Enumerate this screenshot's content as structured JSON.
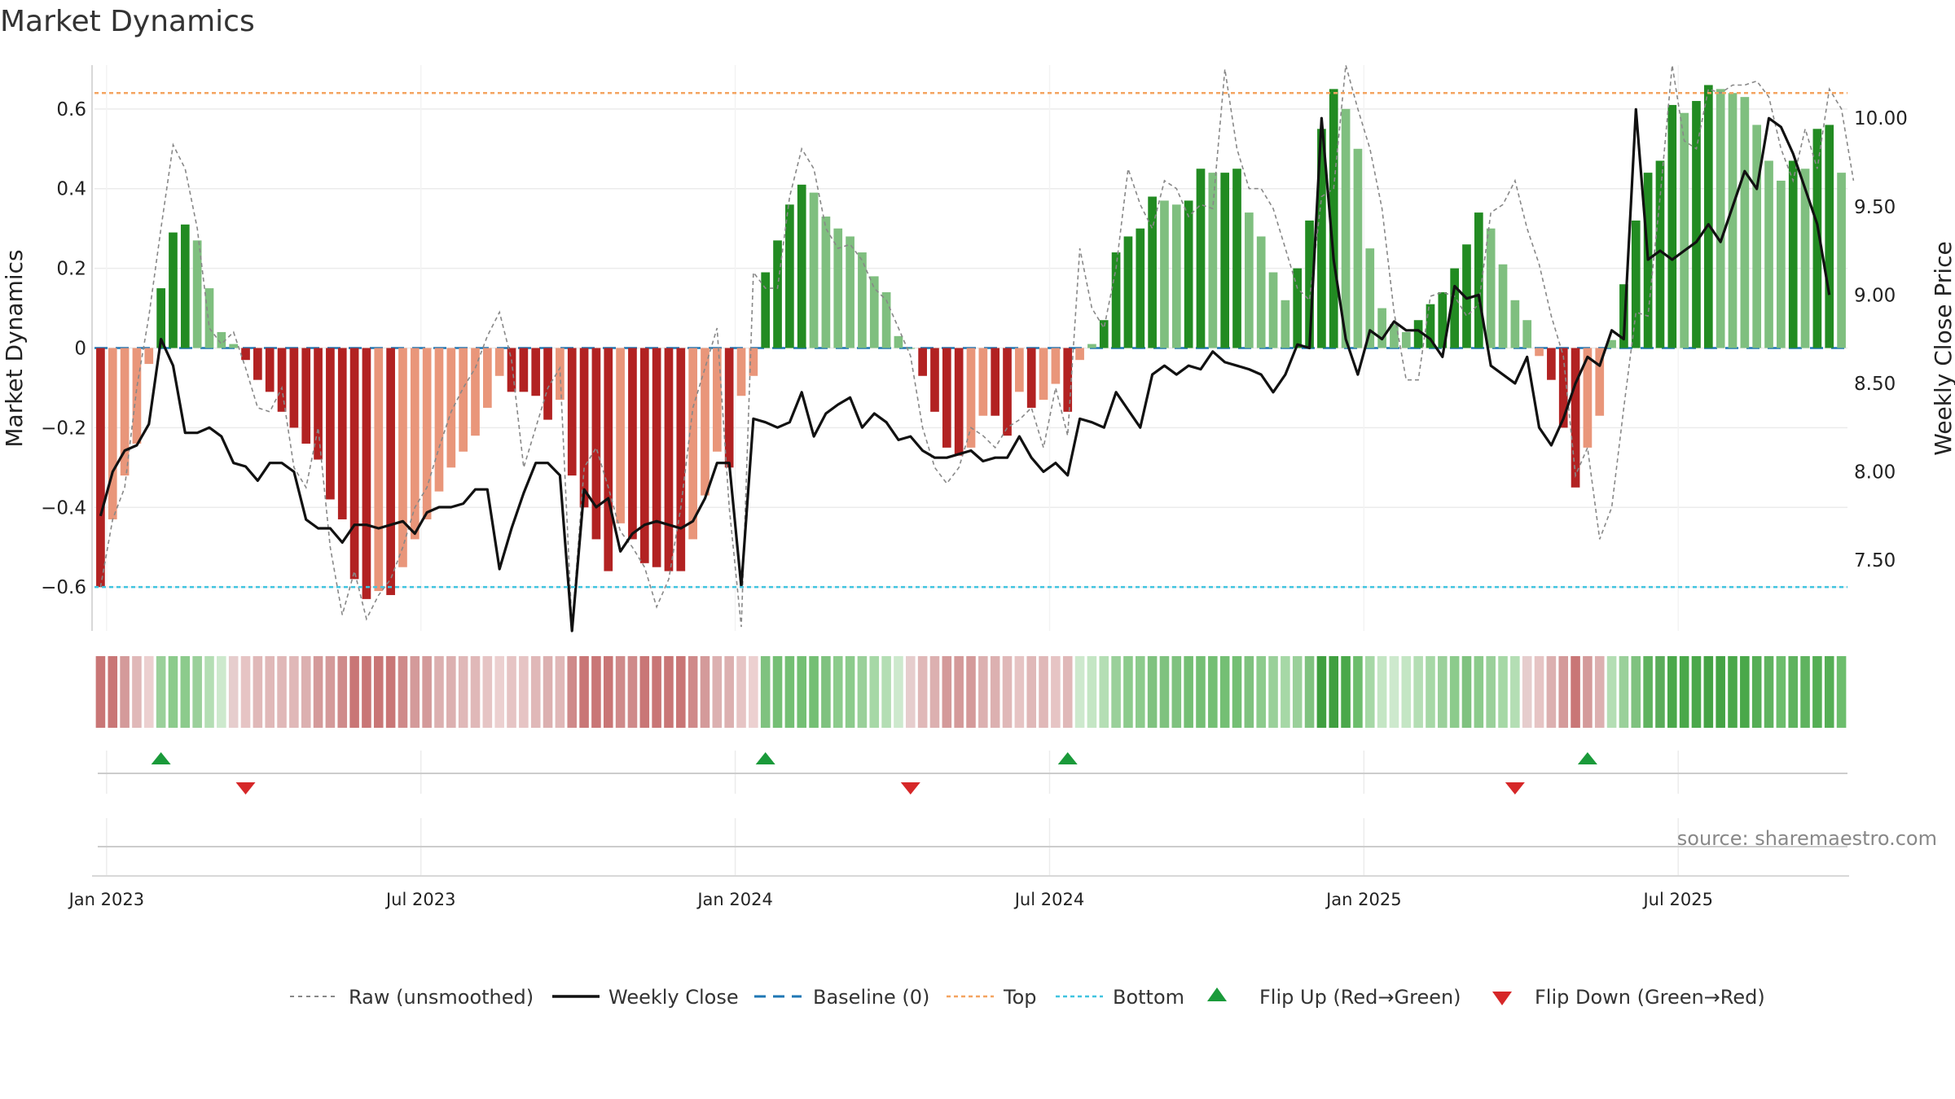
{
  "chart_data": {
    "type": "bar",
    "title": "Market Dynamics",
    "ylabel_left": "Market Dynamics",
    "ylabel_right": "Weekly Close Price",
    "source": "source: sharemaestro.com",
    "ylim_left": [
      -0.71,
      0.71
    ],
    "ylim_right": [
      7.1,
      10.3
    ],
    "yticks_left": [
      "0.6",
      "0.4",
      "0.2",
      "0",
      "−0.2",
      "−0.4",
      "−0.6"
    ],
    "ytick_values_left": [
      0.6,
      0.4,
      0.2,
      0,
      -0.2,
      -0.4,
      -0.6
    ],
    "yticks_right": [
      "10.00",
      "9.50",
      "9.00",
      "8.50",
      "8.00",
      "7.50"
    ],
    "ytick_values_right": [
      10.0,
      9.5,
      9.0,
      8.5,
      8.0,
      7.5
    ],
    "xticks": [
      "Jan 2023",
      "Jul 2023",
      "Jan 2024",
      "Jul 2024",
      "Jan 2025",
      "Jul 2025"
    ],
    "xtick_weeks": [
      0.5,
      26.5,
      52.5,
      78.5,
      104.5,
      130.5
    ],
    "top_line": 0.64,
    "bottom_line": -0.6,
    "baseline": 0,
    "grid": true,
    "legend_position": "bottom-center",
    "colors": {
      "strong_green": "#228b22",
      "light_green": "#7fbf7f",
      "strong_red": "#b22222",
      "light_red": "#e9967a",
      "close": "#111111",
      "raw": "#888888",
      "baseline": "#1f77b4",
      "top": "#f4a460",
      "bottom": "#40c4e0",
      "flip_up": "#1a9a3a",
      "flip_down": "#d62728"
    },
    "bars": [
      -0.6,
      -0.43,
      -0.32,
      -0.24,
      -0.04,
      0.15,
      0.29,
      0.31,
      0.27,
      0.15,
      0.04,
      0.01,
      -0.03,
      -0.08,
      -0.11,
      -0.16,
      -0.2,
      -0.24,
      -0.28,
      -0.38,
      -0.43,
      -0.58,
      -0.63,
      -0.61,
      -0.62,
      -0.55,
      -0.48,
      -0.43,
      -0.36,
      -0.3,
      -0.26,
      -0.22,
      -0.15,
      -0.07,
      -0.11,
      -0.11,
      -0.12,
      -0.18,
      -0.13,
      -0.32,
      -0.4,
      -0.48,
      -0.56,
      -0.44,
      -0.48,
      -0.54,
      -0.55,
      -0.56,
      -0.56,
      -0.48,
      -0.37,
      -0.26,
      -0.3,
      -0.12,
      -0.07,
      0.19,
      0.27,
      0.36,
      0.41,
      0.39,
      0.33,
      0.3,
      0.28,
      0.24,
      0.18,
      0.14,
      0.03,
      0.0,
      -0.07,
      -0.16,
      -0.25,
      -0.27,
      -0.25,
      -0.17,
      -0.17,
      -0.22,
      -0.11,
      -0.15,
      -0.13,
      -0.09,
      -0.16,
      -0.03,
      0.01,
      0.07,
      0.24,
      0.28,
      0.3,
      0.38,
      0.37,
      0.36,
      0.37,
      0.45,
      0.44,
      0.44,
      0.45,
      0.34,
      0.28,
      0.19,
      0.12,
      0.2,
      0.32,
      0.55,
      0.65,
      0.6,
      0.5,
      0.25,
      0.1,
      0.06,
      0.04,
      0.07,
      0.11,
      0.14,
      0.2,
      0.26,
      0.34,
      0.3,
      0.21,
      0.12,
      0.07,
      -0.02,
      -0.08,
      -0.2,
      -0.35,
      -0.25,
      -0.17,
      0.02,
      0.16,
      0.32,
      0.44,
      0.47,
      0.61,
      0.59,
      0.62,
      0.66,
      0.65,
      0.64,
      0.63,
      0.56,
      0.47,
      0.42,
      0.47,
      0.45,
      0.55,
      0.56,
      0.44
    ],
    "raw": [
      -0.6,
      -0.43,
      -0.35,
      -0.1,
      0.08,
      0.3,
      0.51,
      0.45,
      0.3,
      0.05,
      0.01,
      0.04,
      -0.05,
      -0.15,
      -0.16,
      -0.1,
      -0.3,
      -0.35,
      -0.2,
      -0.5,
      -0.67,
      -0.56,
      -0.68,
      -0.62,
      -0.58,
      -0.5,
      -0.4,
      -0.35,
      -0.25,
      -0.16,
      -0.1,
      -0.05,
      0.03,
      0.09,
      -0.03,
      -0.3,
      -0.2,
      -0.1,
      -0.05,
      -0.7,
      -0.3,
      -0.25,
      -0.35,
      -0.46,
      -0.5,
      -0.55,
      -0.65,
      -0.58,
      -0.4,
      -0.15,
      -0.05,
      0.05,
      -0.4,
      -0.7,
      0.19,
      0.15,
      0.15,
      0.38,
      0.5,
      0.45,
      0.3,
      0.25,
      0.26,
      0.22,
      0.15,
      0.12,
      0.05,
      -0.02,
      -0.2,
      -0.3,
      -0.34,
      -0.3,
      -0.2,
      -0.22,
      -0.25,
      -0.2,
      -0.18,
      -0.15,
      -0.25,
      -0.1,
      -0.22,
      0.25,
      0.1,
      0.05,
      0.2,
      0.45,
      0.36,
      0.3,
      0.42,
      0.4,
      0.33,
      0.36,
      0.35,
      0.7,
      0.5,
      0.4,
      0.4,
      0.35,
      0.25,
      0.15,
      0.12,
      0.38,
      0.4,
      0.75,
      0.6,
      0.5,
      0.35,
      0.09,
      -0.08,
      -0.08,
      0.13,
      0.14,
      0.13,
      0.08,
      0.11,
      0.34,
      0.36,
      0.42,
      0.3,
      0.21,
      0.08,
      -0.02,
      -0.32,
      -0.25,
      -0.48,
      -0.4,
      -0.15,
      0.09,
      0.08,
      0.38,
      0.74,
      0.52,
      0.5,
      0.65,
      0.64,
      0.66,
      0.66,
      0.67,
      0.63,
      0.5,
      0.42,
      0.55,
      0.45,
      0.65,
      0.6,
      0.42
    ],
    "close": [
      7.75,
      8.0,
      8.12,
      8.15,
      8.27,
      8.75,
      8.6,
      8.22,
      8.22,
      8.25,
      8.2,
      8.05,
      8.03,
      7.95,
      8.05,
      8.05,
      8.0,
      7.73,
      7.68,
      7.68,
      7.6,
      7.7,
      7.7,
      7.68,
      7.7,
      7.72,
      7.65,
      7.77,
      7.8,
      7.8,
      7.82,
      7.9,
      7.9,
      7.45,
      7.68,
      7.88,
      8.05,
      8.05,
      7.98,
      7.1,
      7.9,
      7.8,
      7.85,
      7.55,
      7.65,
      7.7,
      7.72,
      7.7,
      7.68,
      7.72,
      7.85,
      8.05,
      8.05,
      7.35,
      8.3,
      8.28,
      8.25,
      8.28,
      8.45,
      8.2,
      8.33,
      8.38,
      8.42,
      8.25,
      8.33,
      8.28,
      8.18,
      8.2,
      8.12,
      8.08,
      8.08,
      8.1,
      8.12,
      8.06,
      8.08,
      8.08,
      8.2,
      8.08,
      8.0,
      8.05,
      7.98,
      8.3,
      8.28,
      8.25,
      8.45,
      8.35,
      8.25,
      8.55,
      8.6,
      8.55,
      8.6,
      8.58,
      8.68,
      8.62,
      8.6,
      8.58,
      8.55,
      8.45,
      8.55,
      8.72,
      8.7,
      10.0,
      9.2,
      8.75,
      8.55,
      8.8,
      8.75,
      8.85,
      8.8,
      8.8,
      8.75,
      8.65,
      9.05,
      8.98,
      9.0,
      8.6,
      8.55,
      8.5,
      8.65,
      8.25,
      8.15,
      8.3,
      8.5,
      8.65,
      8.6,
      8.8,
      8.75,
      10.05,
      9.2,
      9.25,
      9.2,
      9.25,
      9.3,
      9.4,
      9.3,
      9.5,
      9.7,
      9.6,
      10.0,
      9.95,
      9.8,
      9.6,
      9.4,
      9.0
    ]
  },
  "flips": {
    "up_weeks": [
      5,
      55,
      80,
      123
    ],
    "down_weeks": [
      12,
      67,
      117
    ]
  },
  "strip": {
    "colors": [
      "#c97676",
      "#c97676",
      "#d49a9a",
      "#e0b8b8",
      "#ecd0d0",
      "#9ad09a",
      "#8ccb8c",
      "#8ccb8c",
      "#9ad09a",
      "#b4deb4",
      "#cde9cd",
      "#e6cdcd",
      "#e6c4c4",
      "#e0b8b8",
      "#e0b8b8",
      "#e0b8b8",
      "#e0b8b8",
      "#dcb0b0",
      "#d49a9a",
      "#d49a9a",
      "#cf8a8a",
      "#c97676",
      "#c97676",
      "#c97676",
      "#c97676",
      "#cf8a8a",
      "#d49a9a",
      "#d49a9a",
      "#dcb0b0",
      "#dcb0b0",
      "#e0b8b8",
      "#e0b8b8",
      "#e6c4c4",
      "#ecd0d0",
      "#e6c4c4",
      "#e6c4c4",
      "#e0b8b8",
      "#dcb0b0",
      "#e0b8b8",
      "#cf8a8a",
      "#c97676",
      "#c97676",
      "#c97676",
      "#cf8a8a",
      "#cf8a8a",
      "#c97676",
      "#c97676",
      "#c97676",
      "#c97676",
      "#cf8a8a",
      "#d49a9a",
      "#dcb0b0",
      "#dcb0b0",
      "#e6c4c4",
      "#ecd0d0",
      "#7fc27f",
      "#74bf74",
      "#74bf74",
      "#74bf74",
      "#74bf74",
      "#7fc27f",
      "#8ccb8c",
      "#8ccb8c",
      "#9ad09a",
      "#a6d8a6",
      "#b4deb4",
      "#cde9cd",
      "#e6cdcd",
      "#e0b8b8",
      "#dcb0b0",
      "#d49a9a",
      "#d49a9a",
      "#d49a9a",
      "#dcb0b0",
      "#dcb0b0",
      "#e0b8b8",
      "#e6c4c4",
      "#e0b8b8",
      "#e0b8b8",
      "#e6c4c4",
      "#e0b8b8",
      "#cde9cd",
      "#c4e6c4",
      "#b4deb4",
      "#9ad09a",
      "#8ccb8c",
      "#8ccb8c",
      "#7fc27f",
      "#7fc27f",
      "#7fc27f",
      "#74bf74",
      "#74bf74",
      "#74bf74",
      "#74bf74",
      "#74bf74",
      "#7fc27f",
      "#8ccb8c",
      "#9ad09a",
      "#a6d8a6",
      "#9ad09a",
      "#7fc27f",
      "#3f9f3f",
      "#3f9f3f",
      "#4aa84a",
      "#6cbd6c",
      "#a6d8a6",
      "#c4e6c4",
      "#cde9cd",
      "#c4e6c4",
      "#b4deb4",
      "#a6d8a6",
      "#9ad09a",
      "#8ccb8c",
      "#7fc27f",
      "#8ccb8c",
      "#9ad09a",
      "#a6d8a6",
      "#b4deb4",
      "#e6cdcd",
      "#e6c4c4",
      "#dcb0b0",
      "#d49a9a",
      "#c97676",
      "#d49a9a",
      "#dcb0b0",
      "#b4deb4",
      "#9ad09a",
      "#7fc27f",
      "#5fb35f",
      "#5aac5a",
      "#4aa84a",
      "#4aa84a",
      "#4aa84a",
      "#45a345",
      "#45a345",
      "#4aa84a",
      "#4aa84a",
      "#55ae55",
      "#5fb35f",
      "#6cbd6c",
      "#5fb35f",
      "#5fb35f",
      "#55ae55",
      "#55ae55",
      "#6cbd6c"
    ]
  },
  "legend": {
    "raw": "Raw (unsmoothed)",
    "close": "Weekly Close",
    "baseline": "Baseline (0)",
    "top": "Top",
    "bottom": "Bottom",
    "flip_up": "Flip Up (Red→Green)",
    "flip_down": "Flip Down (Green→Red)"
  }
}
